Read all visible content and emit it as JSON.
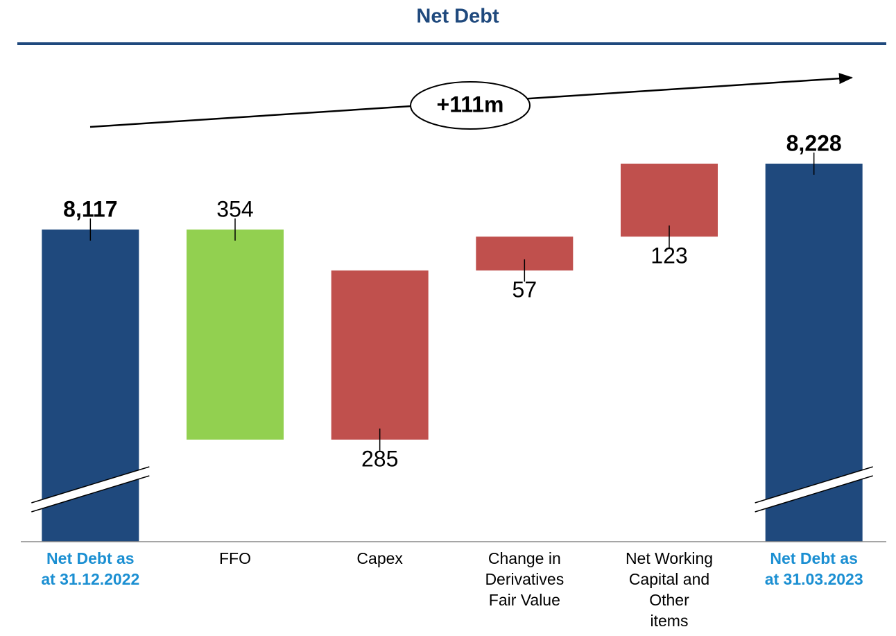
{
  "chart_data": {
    "type": "waterfall",
    "title": "Net Debt",
    "annotation": "+111m",
    "categories": [
      "Net Debt as\nat 31.12.2022",
      "FFO",
      "Capex",
      "Change in\nDerivatives\nFair Value",
      "Net Working\nCapital and\nOther\nitems",
      "Net Debt as\nat 31.03.2023"
    ],
    "values": [
      8117,
      -354,
      285,
      57,
      123,
      8228
    ],
    "value_labels": [
      "8,117",
      "354",
      "285",
      "57",
      "123",
      "8,228"
    ],
    "colors": [
      "#1f497d",
      "#92d050",
      "#c0504d",
      "#c0504d",
      "#c0504d",
      "#1f497d"
    ],
    "ylim": [
      7591,
      8270
    ]
  }
}
